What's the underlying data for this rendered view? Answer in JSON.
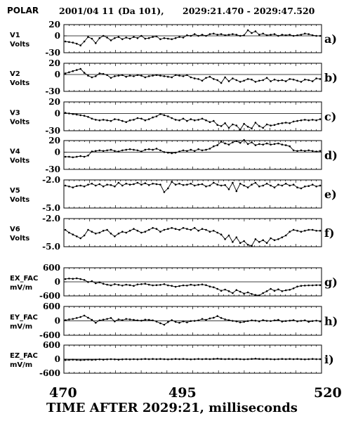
{
  "header": {
    "instrument": "POLAR",
    "date": "2001/04 11",
    "day": "(Da  101),",
    "time_range": "2029:21.470 - 2029:47.520"
  },
  "chart_data": {
    "type": "line",
    "x_range": [
      470,
      520
    ],
    "x_ticks": [
      "470",
      "495",
      "520"
    ],
    "xlabel": "TIME AFTER 2029:21, milliseconds",
    "panels": [
      {
        "id": "v1",
        "ylabel": "V1",
        "unit": "Volts",
        "panel_label": "a)",
        "ylim": [
          -30,
          20
        ],
        "ticks": [
          "20",
          "0",
          "-30"
        ],
        "values": [
          -10,
          -11,
          -12,
          -14,
          -17,
          -10,
          -2,
          -5,
          -13,
          -4,
          0,
          -3,
          -8,
          -4,
          -2,
          -6,
          -3,
          -5,
          -2,
          -4,
          0,
          -5,
          -4,
          -2,
          -1,
          -6,
          -4,
          -5,
          -6,
          -4,
          -2,
          -3,
          1,
          0,
          3,
          0,
          2,
          0,
          3,
          4,
          2,
          3,
          1,
          2,
          3,
          2,
          0,
          1,
          10,
          5,
          8,
          2,
          4,
          1,
          2,
          3,
          0,
          2,
          1,
          2,
          0,
          1,
          2,
          4,
          3,
          1,
          0,
          0
        ]
      },
      {
        "id": "v2",
        "ylabel": "V2",
        "unit": "Volts",
        "panel_label": "b)",
        "ylim": [
          -30,
          20
        ],
        "ticks": [
          "20",
          "0",
          "-30"
        ],
        "values": [
          2,
          4,
          6,
          8,
          10,
          3,
          -2,
          -5,
          -3,
          2,
          1,
          -1,
          -6,
          -3,
          -2,
          -1,
          -4,
          -2,
          -3,
          -1,
          -2,
          -5,
          -3,
          -2,
          -1,
          -2,
          -3,
          -4,
          -5,
          -1,
          -2,
          -3,
          -1,
          -5,
          -7,
          -8,
          -11,
          -6,
          -4,
          -8,
          -10,
          -15,
          -5,
          -12,
          -7,
          -10,
          -13,
          -11,
          -8,
          -9,
          -13,
          -11,
          -10,
          -6,
          -12,
          -9,
          -11,
          -10,
          -12,
          -8,
          -9,
          -11,
          -13,
          -9,
          -10,
          -12,
          -7,
          -8
        ]
      },
      {
        "id": "v3",
        "ylabel": "V3",
        "unit": "Volts",
        "panel_label": "c)",
        "ylim": [
          -30,
          20
        ],
        "ticks": [
          "20",
          "0",
          "-30"
        ],
        "values": [
          1,
          0,
          -1,
          -2,
          -3,
          -4,
          -6,
          -9,
          -11,
          -12,
          -11,
          -12,
          -13,
          -10,
          -11,
          -13,
          -15,
          -12,
          -11,
          -8,
          -9,
          -12,
          -10,
          -7,
          -5,
          -1,
          -3,
          -5,
          -8,
          -11,
          -12,
          -9,
          -13,
          -10,
          -12,
          -11,
          -9,
          -12,
          -15,
          -13,
          -20,
          -22,
          -17,
          -25,
          -19,
          -21,
          -28,
          -18,
          -23,
          -26,
          -16,
          -22,
          -25,
          -19,
          -21,
          -20,
          -18,
          -17,
          -16,
          -17,
          -14,
          -13,
          -12,
          -11,
          -12,
          -11,
          -12,
          -10
        ]
      },
      {
        "id": "v4",
        "ylabel": "V4",
        "unit": "Volts",
        "panel_label": "d)",
        "ylim": [
          -30,
          20
        ],
        "ticks": [
          "20",
          "0",
          "-30"
        ],
        "values": [
          -8,
          -8,
          -9,
          -8,
          -7,
          -8,
          -6,
          1,
          2,
          3,
          2,
          3,
          4,
          2,
          1,
          3,
          4,
          5,
          4,
          3,
          1,
          4,
          5,
          4,
          6,
          3,
          0,
          -1,
          -2,
          -1,
          1,
          3,
          2,
          4,
          2,
          5,
          3,
          4,
          6,
          10,
          12,
          18,
          15,
          13,
          17,
          19,
          16,
          21,
          14,
          17,
          12,
          14,
          13,
          15,
          13,
          14,
          15,
          13,
          12,
          10,
          3,
          2,
          3,
          2,
          3,
          2,
          1,
          2
        ]
      },
      {
        "id": "v5",
        "ylabel": "V5",
        "unit": "Volts",
        "panel_label": "e)",
        "ylim": [
          -5,
          -2
        ],
        "ticks": [
          "-2.0",
          "-5.0"
        ],
        "values": [
          -2.6,
          -2.7,
          -2.8,
          -2.65,
          -2.6,
          -2.7,
          -2.5,
          -2.4,
          -2.6,
          -2.45,
          -2.7,
          -2.5,
          -2.55,
          -2.7,
          -2.3,
          -2.6,
          -2.4,
          -2.5,
          -2.45,
          -2.3,
          -2.5,
          -2.35,
          -2.55,
          -2.4,
          -2.45,
          -2.5,
          -3.3,
          -2.9,
          -2.2,
          -2.5,
          -2.4,
          -2.55,
          -2.5,
          -2.4,
          -2.6,
          -2.5,
          -2.45,
          -2.7,
          -2.6,
          -2.3,
          -2.5,
          -2.6,
          -2.55,
          -3.0,
          -2.3,
          -3.2,
          -2.4,
          -2.6,
          -2.8,
          -2.5,
          -2.3,
          -2.7,
          -2.6,
          -2.4,
          -2.6,
          -2.8,
          -2.5,
          -2.6,
          -2.4,
          -2.6,
          -2.5,
          -2.8,
          -2.9,
          -2.7,
          -2.65,
          -2.5,
          -2.7,
          -2.6
        ]
      },
      {
        "id": "v6",
        "ylabel": "V6",
        "unit": "Volts",
        "panel_label": "f)",
        "ylim": [
          -5,
          -2
        ],
        "ticks": [
          "-2.0",
          "-5.0"
        ],
        "values": [
          -3.2,
          -3.5,
          -3.7,
          -3.9,
          -4.1,
          -3.8,
          -3.2,
          -3.4,
          -3.6,
          -3.5,
          -3.3,
          -3.2,
          -3.6,
          -3.9,
          -3.6,
          -3.4,
          -3.5,
          -3.3,
          -3.1,
          -3.3,
          -3.5,
          -3.4,
          -3.2,
          -3.0,
          -3.1,
          -3.4,
          -3.2,
          -3.1,
          -3.0,
          -3.1,
          -3.2,
          -3.0,
          -3.1,
          -3.2,
          -3.0,
          -3.3,
          -3.1,
          -3.2,
          -3.4,
          -3.3,
          -3.5,
          -3.7,
          -4.2,
          -3.8,
          -4.5,
          -4.0,
          -4.6,
          -4.4,
          -4.8,
          -4.9,
          -4.2,
          -4.5,
          -4.3,
          -4.6,
          -4.1,
          -4.3,
          -4.2,
          -4.0,
          -3.8,
          -3.4,
          -3.2,
          -3.3,
          -3.4,
          -3.3,
          -3.2,
          -3.2,
          -3.3,
          -3.3
        ]
      },
      {
        "id": "ex",
        "ylabel": "EX_FAC",
        "unit": "mV/m",
        "panel_label": "g)",
        "ylim": [
          -600,
          600
        ],
        "ticks": [
          "600",
          "0",
          "-600"
        ],
        "values": [
          120,
          140,
          130,
          150,
          120,
          80,
          -10,
          30,
          -60,
          -20,
          -80,
          -120,
          -150,
          -100,
          -130,
          -160,
          -120,
          -140,
          -170,
          -110,
          -100,
          -80,
          -120,
          -150,
          -140,
          -130,
          -100,
          -150,
          -170,
          -210,
          -180,
          -150,
          -160,
          -120,
          -150,
          -130,
          -110,
          -140,
          -200,
          -230,
          -300,
          -380,
          -330,
          -400,
          -480,
          -350,
          -420,
          -500,
          -450,
          -520,
          -560,
          -580,
          -480,
          -400,
          -300,
          -380,
          -320,
          -400,
          -360,
          -340,
          -280,
          -200,
          -170,
          -160,
          -150,
          -150,
          -140,
          -140
        ]
      },
      {
        "id": "ey",
        "ylabel": "EY_FAC",
        "unit": "mV/m",
        "panel_label": "h)",
        "ylim": [
          -600,
          600
        ],
        "ticks": [
          "600",
          "0",
          "-600"
        ],
        "values": [
          30,
          60,
          80,
          120,
          160,
          220,
          130,
          40,
          -80,
          20,
          50,
          80,
          120,
          -20,
          60,
          30,
          80,
          60,
          40,
          20,
          10,
          50,
          40,
          20,
          -30,
          -100,
          -160,
          -50,
          30,
          -40,
          -80,
          -20,
          -60,
          -10,
          0,
          20,
          80,
          40,
          100,
          130,
          200,
          120,
          60,
          30,
          0,
          -20,
          -60,
          -40,
          -10,
          20,
          10,
          -20,
          30,
          0,
          -10,
          20,
          40,
          -30,
          -10,
          10,
          30,
          -20,
          0,
          20,
          -40,
          -10,
          10,
          -20
        ]
      },
      {
        "id": "ez",
        "ylabel": "EZ_FAC",
        "unit": "mV/m",
        "panel_label": "i)",
        "ylim": [
          -600,
          600
        ],
        "ticks": [
          "600",
          "0",
          "-600"
        ],
        "values": [
          -40,
          -30,
          -20,
          -30,
          -40,
          -30,
          -20,
          -30,
          -20,
          -10,
          -20,
          -10,
          0,
          -10,
          -20,
          -10,
          0,
          -10,
          0,
          -10,
          0,
          10,
          0,
          10,
          0,
          10,
          0,
          -10,
          0,
          10,
          0,
          10,
          0,
          -10,
          0,
          10,
          0,
          10,
          0,
          10,
          20,
          10,
          0,
          10,
          0,
          10,
          0,
          -10,
          0,
          10,
          20,
          10,
          0,
          10,
          0,
          -10,
          0,
          10,
          0,
          10,
          0,
          10,
          0,
          -10,
          0,
          10,
          0,
          0
        ]
      }
    ]
  }
}
